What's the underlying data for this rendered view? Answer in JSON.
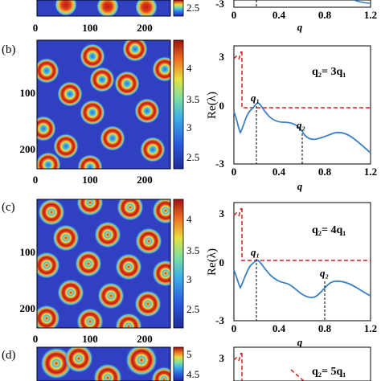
{
  "panels": [
    {
      "label": "",
      "map": {
        "xticks": [
          "0",
          "100",
          "200"
        ],
        "yticks": [],
        "colorbar_ticks": [
          "2.5"
        ]
      },
      "plot": {
        "xticks": [
          "0",
          "0.4",
          "0.8",
          "1.2"
        ],
        "yticks": [
          "-3"
        ],
        "xlabel": "q",
        "ylabel": "",
        "annotation": ""
      }
    },
    {
      "label": "(b)",
      "map": {
        "xticks": [
          "0",
          "100",
          "200"
        ],
        "yticks": [
          "100",
          "200"
        ],
        "colorbar_ticks": [
          "4",
          "3.5",
          "3",
          "2.5"
        ]
      },
      "plot": {
        "xticks": [
          "0",
          "0.4",
          "0.8",
          "1.2"
        ],
        "yticks": [
          "3",
          "0",
          "-3"
        ],
        "xlabel": "q",
        "ylabel": "Re(λ)",
        "annotation": "q₂= 3q₁",
        "q1_label": "q₁",
        "q2_label": "q₂"
      }
    },
    {
      "label": "(c)",
      "map": {
        "xticks": [
          "0",
          "100",
          "200"
        ],
        "yticks": [
          "100",
          "200"
        ],
        "colorbar_ticks": [
          "4",
          "3.5",
          "3",
          "2.5"
        ]
      },
      "plot": {
        "xticks": [
          "0",
          "0.4",
          "0.8",
          "1.2"
        ],
        "yticks": [
          "3",
          "0",
          "-3"
        ],
        "xlabel": "q",
        "ylabel": "Re(λ)",
        "annotation": "q₂= 4q₁",
        "q1_label": "q₁",
        "q2_label": "q₂"
      }
    },
    {
      "label": "(d)",
      "map": {
        "xticks": [],
        "yticks": [],
        "colorbar_ticks": [
          "5",
          "4.5"
        ]
      },
      "plot": {
        "xticks": [],
        "yticks": [
          "3"
        ],
        "xlabel": "",
        "ylabel": "",
        "annotation": "q₂= 5q₁"
      }
    }
  ],
  "chart_data": [
    {
      "type": "line",
      "panel": "b",
      "xlim": [
        0,
        1.2
      ],
      "ylim": [
        -3,
        3
      ],
      "q1": 0.2,
      "q2": 0.6,
      "xlabel": "q",
      "ylabel": "Re(λ)"
    },
    {
      "type": "line",
      "panel": "c",
      "xlim": [
        0,
        1.2
      ],
      "ylim": [
        -3,
        3
      ],
      "q1": 0.2,
      "q2": 0.8,
      "xlabel": "q",
      "ylabel": "Re(λ)"
    }
  ],
  "colors": {
    "curve": "#3a7fc4",
    "dashed": "#d22222",
    "map_bg": "#3040c0"
  }
}
